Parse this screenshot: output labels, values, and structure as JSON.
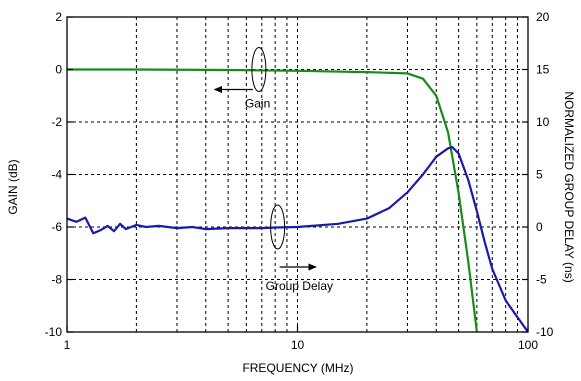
{
  "chart_data": {
    "type": "line",
    "title": "",
    "xlabel": "FREQUENCY (MHz)",
    "ylabel_left": "GAIN (dB)",
    "ylabel_right": "NORMALIZED GROUP DELAY (ns)",
    "x_scale": "log",
    "xlim": [
      1,
      100
    ],
    "ylim_left": [
      -10,
      2
    ],
    "ylim_right": [
      -10,
      20
    ],
    "grid": true,
    "x_ticks": [
      {
        "value": 1,
        "label": "1"
      },
      {
        "value": 10,
        "label": "10"
      },
      {
        "value": 100,
        "label": "100"
      }
    ],
    "y_left_ticks": [
      {
        "value": 2,
        "label": "2"
      },
      {
        "value": 0,
        "label": "0"
      },
      {
        "value": -2,
        "label": "-2"
      },
      {
        "value": -4,
        "label": "-4"
      },
      {
        "value": -6,
        "label": "-6"
      },
      {
        "value": -8,
        "label": "-8"
      },
      {
        "value": -10,
        "label": "-10"
      }
    ],
    "y_right_ticks": [
      {
        "value": 20,
        "label": "20"
      },
      {
        "value": 15,
        "label": "15"
      },
      {
        "value": 10,
        "label": "10"
      },
      {
        "value": 5,
        "label": "5"
      },
      {
        "value": 0,
        "label": "0"
      },
      {
        "value": -5,
        "label": "-5"
      },
      {
        "value": -10,
        "label": "-10"
      }
    ],
    "series": [
      {
        "name": "Gain",
        "axis": "left",
        "color": "#1a8a1a",
        "x": [
          1,
          2,
          5,
          10,
          20,
          30,
          35,
          40,
          45,
          50,
          55,
          60
        ],
        "y": [
          0.0,
          0.0,
          -0.02,
          -0.05,
          -0.1,
          -0.15,
          -0.35,
          -1.0,
          -2.4,
          -4.7,
          -7.3,
          -10.0
        ]
      },
      {
        "name": "Group Delay",
        "axis": "right",
        "color": "#1a1aaa",
        "x": [
          1,
          1.1,
          1.2,
          1.3,
          1.4,
          1.5,
          1.6,
          1.7,
          1.8,
          2.0,
          2.2,
          2.5,
          3,
          3.5,
          4,
          5,
          6,
          7,
          8,
          10,
          15,
          20,
          25,
          30,
          35,
          40,
          45,
          47,
          50,
          55,
          60,
          65,
          70,
          80,
          90,
          100
        ],
        "y": [
          0.8,
          0.5,
          0.9,
          -0.6,
          -0.3,
          0.1,
          -0.4,
          0.3,
          -0.2,
          0.2,
          0.0,
          0.1,
          -0.1,
          0.0,
          -0.2,
          -0.1,
          -0.1,
          -0.1,
          -0.05,
          0.0,
          0.3,
          0.8,
          1.8,
          3.3,
          5.0,
          6.7,
          7.5,
          7.6,
          7.0,
          4.5,
          1.5,
          -1.5,
          -4.0,
          -7.0,
          -8.6,
          -10.0
        ]
      }
    ],
    "annotations": [
      {
        "text": "Gain",
        "target": "Gain"
      },
      {
        "text": "Group Delay",
        "target": "Group Delay"
      }
    ]
  }
}
